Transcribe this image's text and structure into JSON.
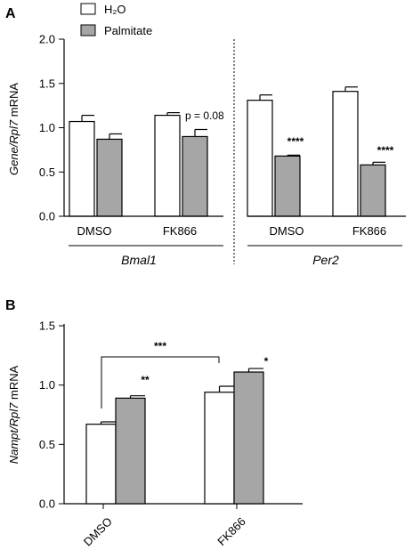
{
  "colors": {
    "h2o": "#ffffff",
    "palmitate": "#a6a6a6",
    "axis": "#000000"
  },
  "legend": [
    {
      "name": "H₂O",
      "color": "#ffffff"
    },
    {
      "name": "Palmitate",
      "color": "#a6a6a6"
    }
  ],
  "chart_data": [
    {
      "type": "bar",
      "panel_label": "A",
      "ylabel_italic": "Gene/Rpl7",
      "ylabel_rest": " mRNA",
      "ylim": [
        0,
        2.0
      ],
      "yticks": [
        "0.0",
        "0.5",
        "1.0",
        "1.5",
        "2.0"
      ],
      "groups": [
        {
          "name": "Bmal1",
          "subgroups": [
            {
              "label": "DMSO",
              "bars": [
                {
                  "series": "H₂O",
                  "value": 1.07,
                  "err": 0.07
                },
                {
                  "series": "Palmitate",
                  "value": 0.87,
                  "err": 0.06
                }
              ]
            },
            {
              "label": "FK866",
              "bars": [
                {
                  "series": "H₂O",
                  "value": 1.14,
                  "err": 0.03
                },
                {
                  "series": "Palmitate",
                  "value": 0.9,
                  "err": 0.08
                }
              ]
            }
          ]
        },
        {
          "name": "Per2",
          "subgroups": [
            {
              "label": "DMSO",
              "bars": [
                {
                  "series": "H₂O",
                  "value": 1.31,
                  "err": 0.06
                },
                {
                  "series": "Palmitate",
                  "value": 0.68,
                  "err": 0.01
                }
              ]
            },
            {
              "label": "FK866",
              "bars": [
                {
                  "series": "H₂O",
                  "value": 1.41,
                  "err": 0.05
                },
                {
                  "series": "Palmitate",
                  "value": 0.58,
                  "err": 0.03
                }
              ]
            }
          ]
        }
      ],
      "annotations": [
        {
          "text": "p = 0.08"
        },
        {
          "text": "****"
        },
        {
          "text": "****"
        }
      ]
    },
    {
      "type": "bar",
      "panel_label": "B",
      "ylabel_italic": "Nampt/Rpl7",
      "ylabel_rest": " mRNA",
      "ylim": [
        0,
        1.5
      ],
      "yticks": [
        "0.0",
        "0.5",
        "1.0",
        "1.5"
      ],
      "categories": [
        "DMSO",
        "FK866"
      ],
      "series": [
        {
          "name": "H₂O",
          "values": [
            0.67,
            0.94
          ],
          "err": [
            0.02,
            0.05
          ]
        },
        {
          "name": "Palmitate",
          "values": [
            0.89,
            1.11
          ],
          "err": [
            0.02,
            0.03
          ]
        }
      ],
      "annotations": [
        {
          "text": "**"
        },
        {
          "text": "*"
        },
        {
          "text": "***"
        }
      ]
    }
  ]
}
